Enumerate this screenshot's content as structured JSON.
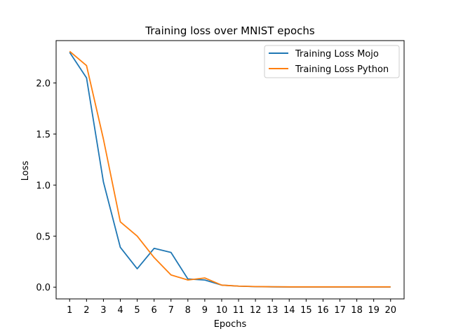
{
  "chart_data": {
    "type": "line",
    "title": "Training loss over MNIST epochs",
    "xlabel": "Epochs",
    "ylabel": "Loss",
    "x": [
      1,
      2,
      3,
      4,
      5,
      6,
      7,
      8,
      9,
      10,
      11,
      12,
      13,
      14,
      15,
      16,
      17,
      18,
      19,
      20
    ],
    "xlim": [
      0.2,
      20.8
    ],
    "ylim": [
      -0.115,
      2.415
    ],
    "yticks": [
      0.0,
      0.5,
      1.0,
      1.5,
      2.0
    ],
    "ytick_labels": [
      "0.0",
      "0.5",
      "1.0",
      "1.5",
      "2.0"
    ],
    "xtick_labels": [
      "1",
      "2",
      "3",
      "4",
      "5",
      "6",
      "7",
      "8",
      "9",
      "10",
      "11",
      "12",
      "13",
      "14",
      "15",
      "16",
      "17",
      "18",
      "19",
      "20"
    ],
    "grid": false,
    "legend_position": "top-right",
    "series": [
      {
        "name": "Training Loss Mojo",
        "color": "#1f77b4",
        "values": [
          2.3,
          2.05,
          1.03,
          0.39,
          0.18,
          0.38,
          0.34,
          0.08,
          0.07,
          0.02,
          0.01,
          0.005,
          0.003,
          0.002,
          0.002,
          0.002,
          0.002,
          0.002,
          0.002,
          0.002
        ]
      },
      {
        "name": "Training Loss Python",
        "color": "#ff7f0e",
        "values": [
          2.31,
          2.17,
          1.45,
          0.64,
          0.5,
          0.29,
          0.12,
          0.07,
          0.09,
          0.02,
          0.01,
          0.006,
          0.004,
          0.003,
          0.003,
          0.003,
          0.003,
          0.003,
          0.003,
          0.003
        ]
      }
    ]
  }
}
